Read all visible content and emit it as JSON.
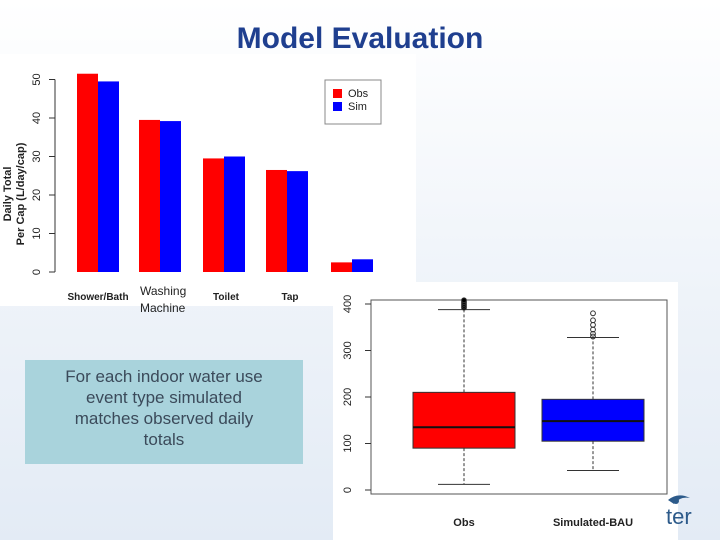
{
  "slide": {
    "title": "Model Evaluation",
    "callout_lines": [
      "For each indoor water use",
      "event type simulated",
      "matches observed daily",
      "totals"
    ],
    "logo_text": "ter"
  },
  "chart_data": [
    {
      "type": "bar",
      "ylabel_line1": "Daily Total",
      "ylabel_line2": "Per Cap (L/day/cap)",
      "ylim": [
        0,
        55
      ],
      "yticks": [
        "0",
        "10",
        "20",
        "30",
        "40",
        "50"
      ],
      "categories": [
        "Shower/Bath",
        "Washing Machine",
        "Toilet",
        "Tap",
        ""
      ],
      "category_label_washing_line1": "Washing",
      "category_label_washing_line2": "Machine",
      "series": [
        {
          "name": "Obs",
          "color": "#ff0000",
          "values": [
            51.5,
            39.5,
            29.5,
            26.5,
            2.5
          ]
        },
        {
          "name": "Sim",
          "color": "#0000ff",
          "values": [
            49.5,
            39.2,
            30.0,
            26.2,
            3.3
          ]
        }
      ],
      "legend": "top-right"
    },
    {
      "type": "box",
      "ylim": [
        0,
        400
      ],
      "yticks": [
        "0",
        "100",
        "200",
        "300",
        "400"
      ],
      "categories": [
        "Obs",
        "Simulated-BAU"
      ],
      "boxes": [
        {
          "label": "Obs",
          "color": "#ff0000",
          "min": 12,
          "q1": 90,
          "median": 135,
          "q3": 210,
          "max": 388,
          "outliers": [
            392,
            396,
            400,
            404,
            408
          ]
        },
        {
          "label": "Simulated-BAU",
          "color": "#0000ff",
          "min": 42,
          "q1": 105,
          "median": 148,
          "q3": 195,
          "max": 328,
          "outliers": [
            330,
            336,
            345,
            355,
            365,
            380
          ]
        }
      ]
    }
  ]
}
